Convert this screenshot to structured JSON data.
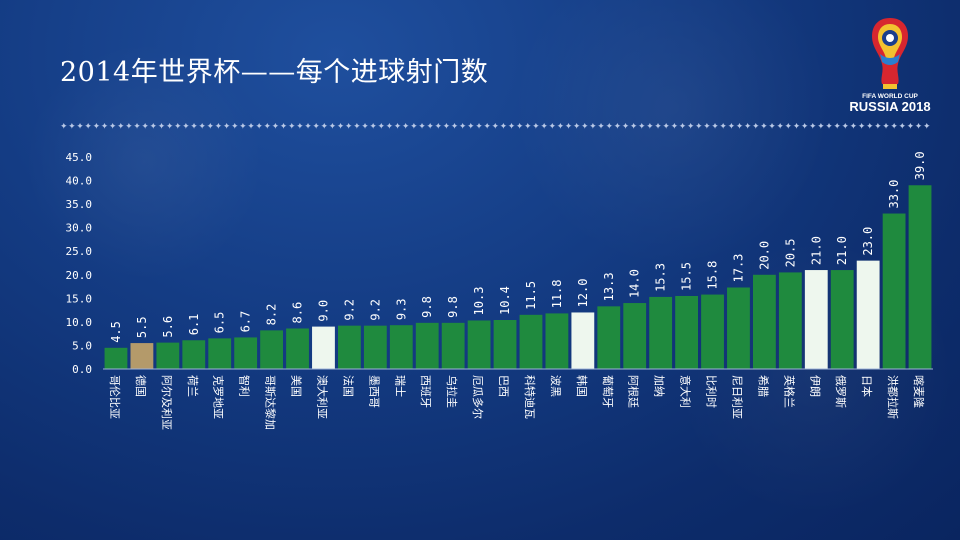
{
  "title": "2014年世界杯——每个进球射门数",
  "logo": {
    "line1": "FIFA WORLD CUP",
    "line2": "RUSSIA 2018"
  },
  "colors": {
    "bar_default": "#1f8a3e",
    "bar_gold": "#b49a6a",
    "bar_white": "#eef7ee",
    "text": "#ffffff"
  },
  "chart_data": {
    "type": "bar",
    "title": "2014年世界杯——每个进球射门数",
    "xlabel": "",
    "ylabel": "",
    "ylim": [
      0,
      45
    ],
    "yticks": [
      "45.0",
      "40.0",
      "35.0",
      "30.0",
      "25.0",
      "20.0",
      "15.0",
      "10.0",
      "5.0",
      "0.0"
    ],
    "grid": false,
    "categories": [
      "哥伦比亚",
      "德国",
      "阿尔及利亚",
      "荷兰",
      "克罗地亚",
      "智利",
      "哥斯达黎加",
      "美国",
      "澳大利亚",
      "法国",
      "墨西哥",
      "瑞士",
      "西班牙",
      "乌拉圭",
      "厄瓜多尔",
      "巴西",
      "科特迪瓦",
      "波黑",
      "韩国",
      "葡萄牙",
      "阿根廷",
      "加纳",
      "意大利",
      "比利时",
      "尼日利亚",
      "希腊",
      "英格兰",
      "伊朗",
      "俄罗斯",
      "日本",
      "洪都拉斯",
      "喀麦隆"
    ],
    "values": [
      4.5,
      5.5,
      5.6,
      6.1,
      6.5,
      6.7,
      8.2,
      8.6,
      9.0,
      9.2,
      9.2,
      9.3,
      9.8,
      9.8,
      10.3,
      10.4,
      11.5,
      11.8,
      12.0,
      13.3,
      14.0,
      15.3,
      15.5,
      15.8,
      17.3,
      20.0,
      20.5,
      21.0,
      21.0,
      23.0,
      33.0,
      39.0
    ],
    "value_labels": [
      "4.5",
      "5.5",
      "5.6",
      "6.1",
      "6.5",
      "6.7",
      "8.2",
      "8.6",
      "9.0",
      "9.2",
      "9.2",
      "9.3",
      "9.8",
      "9.8",
      "10.3",
      "10.4",
      "11.5",
      "11.8",
      "12.0",
      "13.3",
      "14.0",
      "15.3",
      "15.5",
      "15.8",
      "17.3",
      "20.0",
      "20.5",
      "21.0",
      "21.0",
      "23.0",
      "33.0",
      "39.0"
    ],
    "highlight": {
      "gold": [
        "德国"
      ],
      "white": [
        "澳大利亚",
        "韩国",
        "伊朗",
        "日本"
      ]
    }
  }
}
